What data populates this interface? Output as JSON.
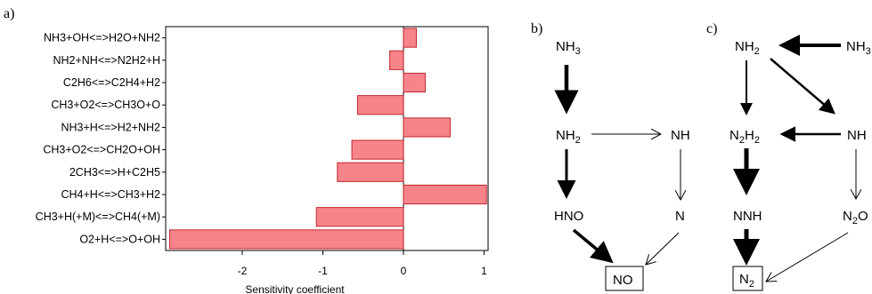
{
  "chart_data": {
    "type": "bar",
    "orientation": "horizontal",
    "panel_label": "a)",
    "categories": [
      "NH3+OH<=>H2O+NH2",
      "NH2+NH<=>N2H2+H",
      "C2H6<=>C2H4+H2",
      "CH3+O2<=>CH3O+O",
      "NH3+H<=>H2+NH2",
      "CH3+O2<=>CH2O+OH",
      "2CH3<=>H+C2H5",
      "CH4+H<=>CH3+H2",
      "CH3+H(+M)<=>CH4(+M)",
      "O2+H<=>O+OH"
    ],
    "values": [
      0.16,
      -0.17,
      0.27,
      -0.57,
      0.58,
      -0.64,
      -0.82,
      1.03,
      -1.08,
      -2.9
    ],
    "xlabel": "Sensitivity coefficient",
    "ylabel": "",
    "xlim": [
      -2.95,
      1.05
    ],
    "xticks": [
      -2,
      -1,
      0,
      1
    ],
    "xtick_labels": [
      "-2",
      "-1",
      "0",
      "1"
    ],
    "bar_color": "#f7848a",
    "bar_edge_color": "#c2282e"
  },
  "diagram_b": {
    "panel_label": "b)",
    "nodes": [
      {
        "id": "NH3",
        "base": "NH",
        "sub": "3"
      },
      {
        "id": "NH2",
        "base": "NH",
        "sub": "2"
      },
      {
        "id": "NH",
        "base": "NH",
        "sub": ""
      },
      {
        "id": "HNO",
        "base": "HNO",
        "sub": ""
      },
      {
        "id": "N",
        "base": "N",
        "sub": ""
      },
      {
        "id": "NO",
        "base": "NO",
        "sub": ""
      }
    ],
    "edges": [
      {
        "from": "NH3",
        "to": "NH2",
        "weight": "heavy"
      },
      {
        "from": "NH2",
        "to": "NH",
        "weight": "light"
      },
      {
        "from": "NH2",
        "to": "HNO",
        "weight": "medium"
      },
      {
        "from": "NH",
        "to": "N",
        "weight": "light"
      },
      {
        "from": "HNO",
        "to": "NO",
        "weight": "medium"
      },
      {
        "from": "N",
        "to": "NO",
        "weight": "light"
      }
    ]
  },
  "diagram_c": {
    "panel_label": "c)",
    "nodes": [
      {
        "id": "NH2",
        "base": "NH",
        "sub": "2",
        "tail": ""
      },
      {
        "id": "NH3",
        "base": "NH",
        "sub": "3",
        "tail": ""
      },
      {
        "id": "N2H2",
        "base": "N",
        "sub": "2",
        "tail": "H",
        "sub2": "2"
      },
      {
        "id": "NH",
        "base": "NH",
        "sub": "",
        "tail": ""
      },
      {
        "id": "NNH",
        "base": "NNH",
        "sub": "",
        "tail": ""
      },
      {
        "id": "N2O",
        "base": "N",
        "sub": "2",
        "tail": "O"
      },
      {
        "id": "N2",
        "base": "N",
        "sub": "2",
        "tail": ""
      }
    ],
    "edges": [
      {
        "from": "NH3",
        "to": "NH2",
        "weight": "heavy"
      },
      {
        "from": "NH2",
        "to": "N2H2",
        "weight": "medium"
      },
      {
        "from": "NH2",
        "to": "NH",
        "weight": "medium"
      },
      {
        "from": "NH",
        "to": "N2H2",
        "weight": "medium"
      },
      {
        "from": "NH",
        "to": "N2O",
        "weight": "light"
      },
      {
        "from": "N2H2",
        "to": "NNH",
        "weight": "heavy"
      },
      {
        "from": "NNH",
        "to": "N2",
        "weight": "heavy"
      },
      {
        "from": "N2O",
        "to": "N2",
        "weight": "light"
      }
    ]
  }
}
